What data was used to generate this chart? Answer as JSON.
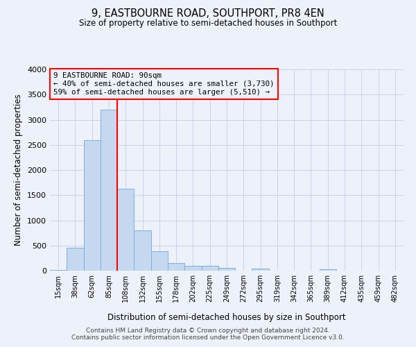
{
  "title": "9, EASTBOURNE ROAD, SOUTHPORT, PR8 4EN",
  "subtitle": "Size of property relative to semi-detached houses in Southport",
  "xlabel": "Distribution of semi-detached houses by size in Southport",
  "ylabel": "Number of semi-detached properties",
  "footnote1": "Contains HM Land Registry data © Crown copyright and database right 2024.",
  "footnote2": "Contains public sector information licensed under the Open Government Licence v3.0.",
  "bar_labels": [
    "15sqm",
    "38sqm",
    "62sqm",
    "85sqm",
    "108sqm",
    "132sqm",
    "155sqm",
    "178sqm",
    "202sqm",
    "225sqm",
    "249sqm",
    "272sqm",
    "295sqm",
    "319sqm",
    "342sqm",
    "365sqm",
    "389sqm",
    "412sqm",
    "435sqm",
    "459sqm",
    "482sqm"
  ],
  "bar_values": [
    20,
    450,
    2600,
    3200,
    1630,
    800,
    390,
    155,
    90,
    90,
    60,
    0,
    40,
    0,
    0,
    0,
    30,
    0,
    0,
    0,
    0
  ],
  "bar_color": "#c5d8f0",
  "bar_edge_color": "#7ab0d8",
  "ylim": [
    0,
    4000
  ],
  "yticks": [
    0,
    500,
    1000,
    1500,
    2000,
    2500,
    3000,
    3500,
    4000
  ],
  "red_line_index": 3.5,
  "property_line_color": "red",
  "annotation_line1": "9 EASTBOURNE ROAD: 90sqm",
  "annotation_line2": "← 40% of semi-detached houses are smaller (3,730)",
  "annotation_line3": "59% of semi-detached houses are larger (5,510) →",
  "annotation_box_color": "red",
  "grid_color": "#c8d4e8",
  "bg_color": "#edf1f9"
}
